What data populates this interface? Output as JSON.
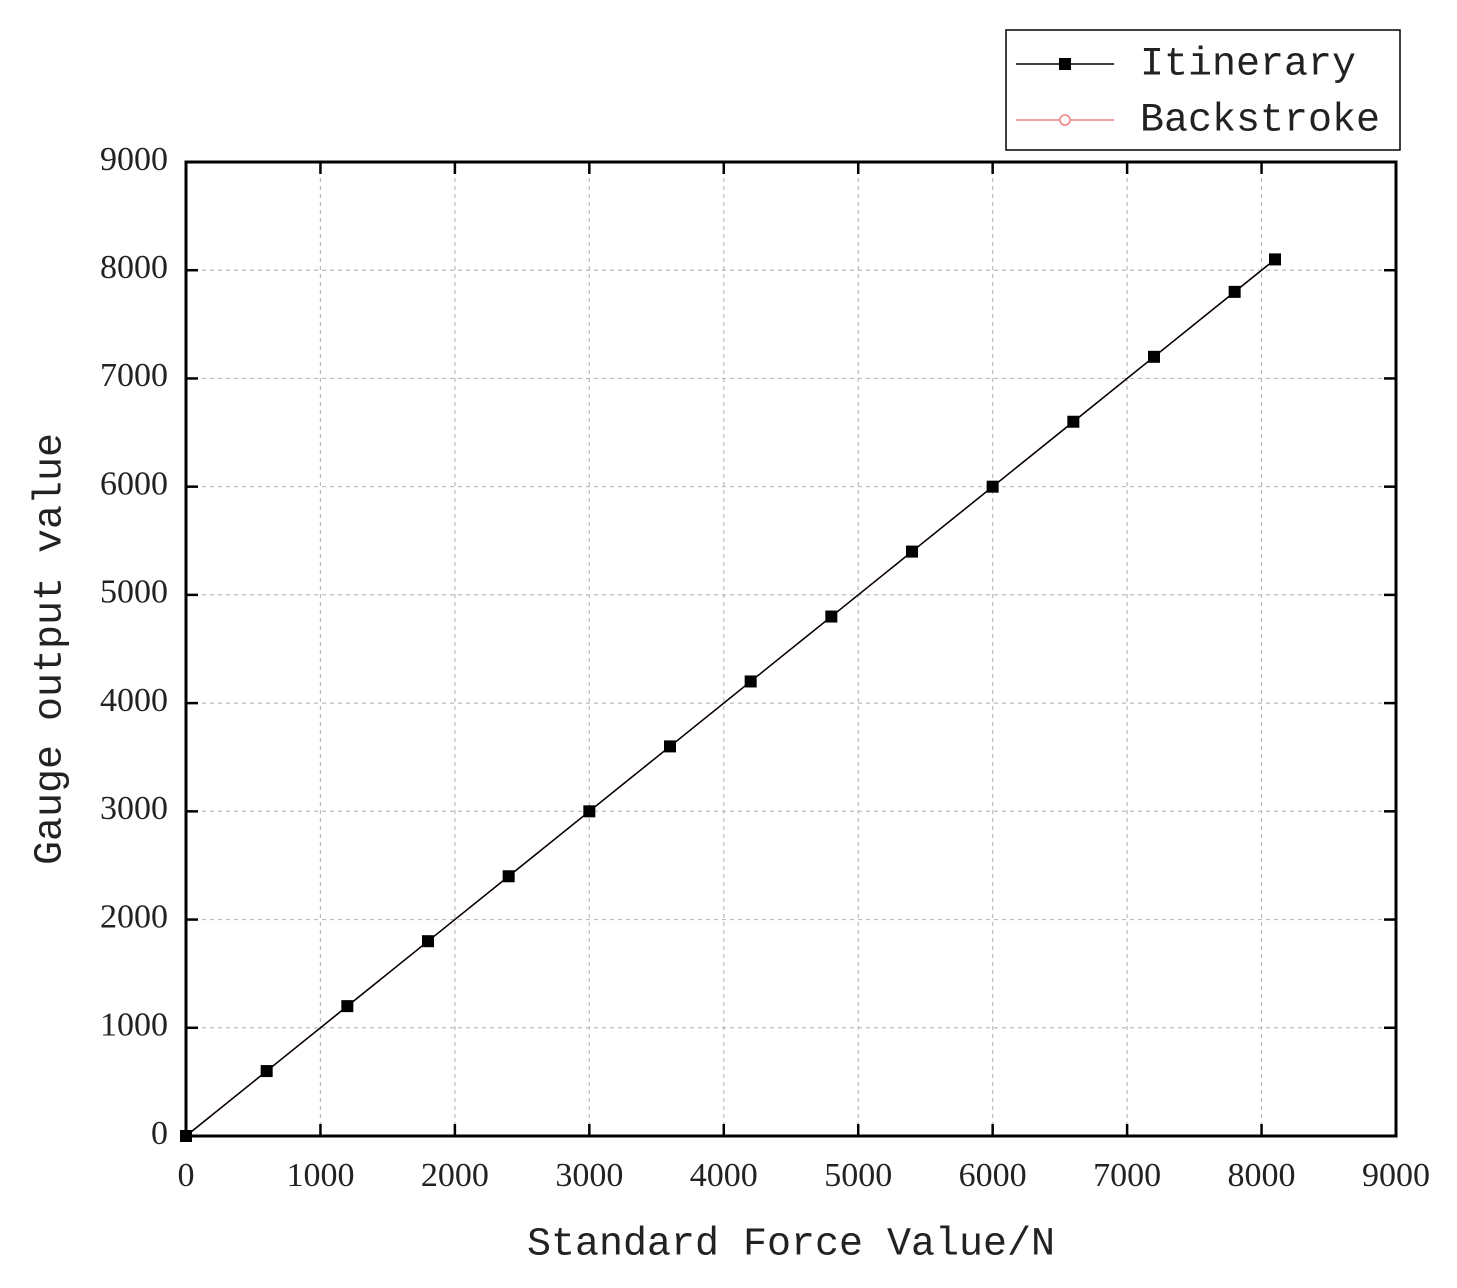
{
  "chart_data": {
    "type": "line",
    "x_label": "Standard Force Value/N",
    "y_label": "Gauge output value",
    "x": [
      0,
      600,
      1200,
      1800,
      2400,
      3000,
      3600,
      4200,
      4800,
      5400,
      6000,
      6600,
      7200,
      7800,
      8100
    ],
    "series": [
      {
        "name": "Itinerary",
        "color": "#000000",
        "marker": "square",
        "values": [
          0,
          600,
          1200,
          1800,
          2400,
          3000,
          3600,
          4200,
          4800,
          5400,
          6000,
          6600,
          7200,
          7800,
          8100
        ]
      },
      {
        "name": "Backstroke",
        "color": "#f08080",
        "marker": "circle",
        "values": [
          0,
          600,
          1200,
          1800,
          2400,
          3000,
          3600,
          4200,
          4800,
          5400,
          6000,
          6600,
          7200,
          7800,
          8100
        ]
      }
    ],
    "xlim": [
      0,
      9000
    ],
    "ylim": [
      0,
      9000
    ],
    "xticks": [
      0,
      1000,
      2000,
      3000,
      4000,
      5000,
      6000,
      7000,
      8000,
      9000
    ],
    "yticks": [
      0,
      1000,
      2000,
      3000,
      4000,
      5000,
      6000,
      7000,
      8000,
      9000
    ],
    "grid": true,
    "legend_position": "top-right"
  }
}
